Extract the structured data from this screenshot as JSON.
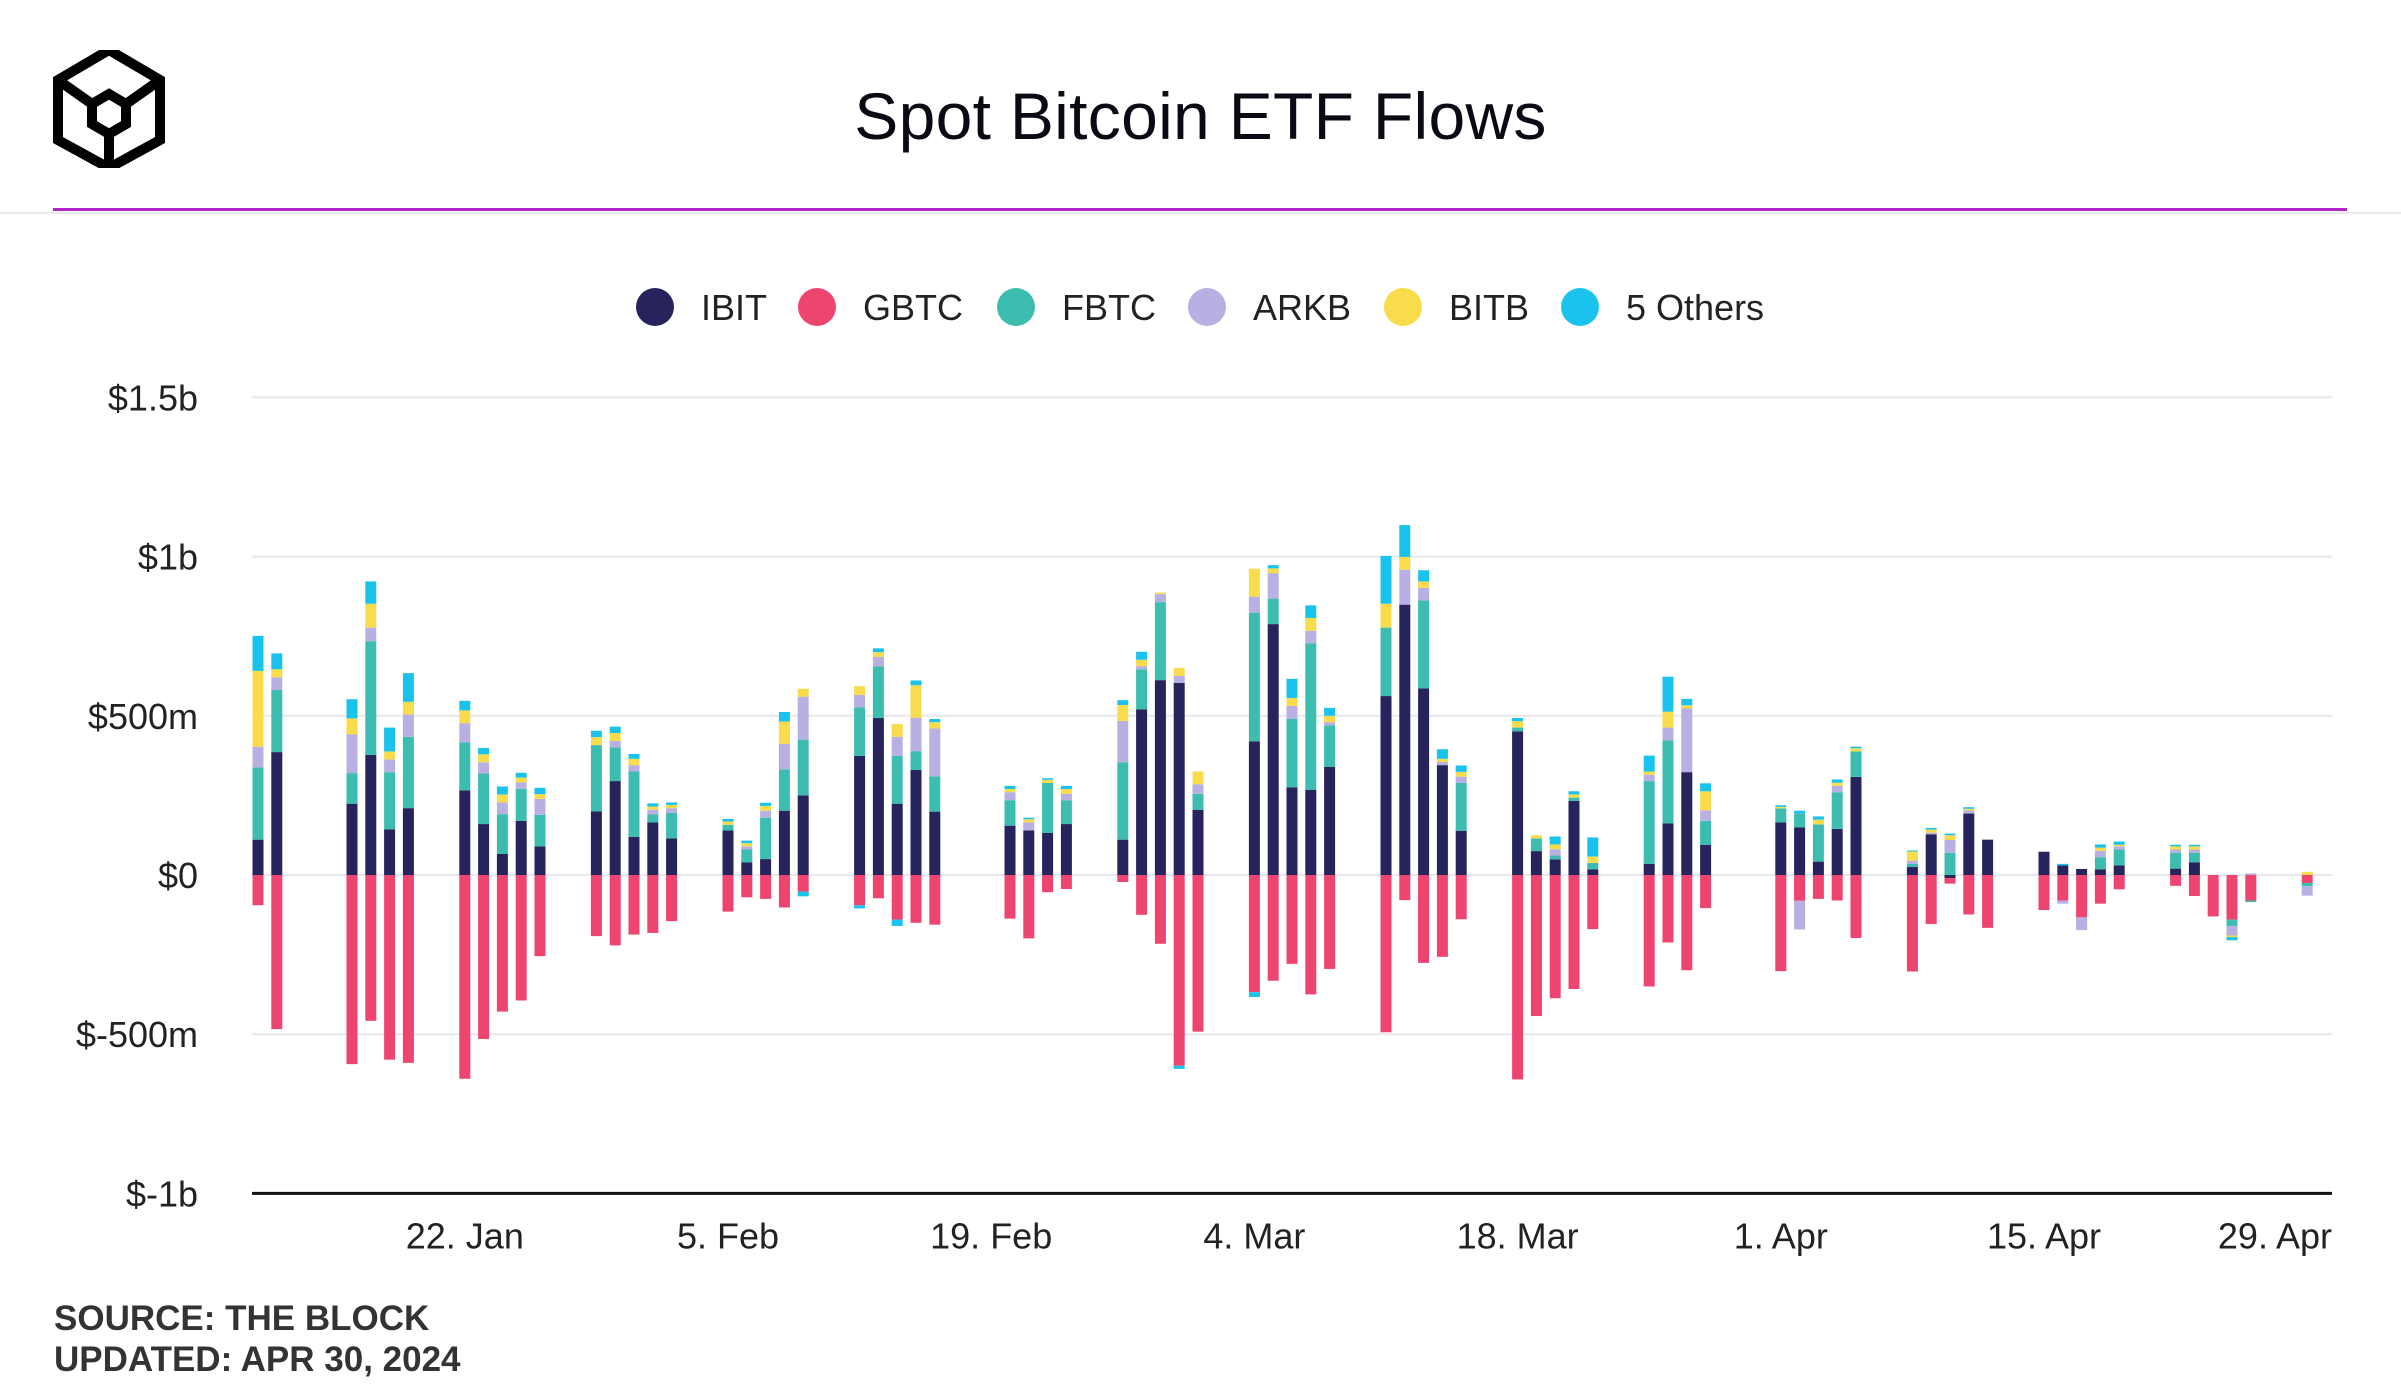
{
  "title": "Spot Bitcoin ETF Flows",
  "footer": {
    "source": "SOURCE: THE BLOCK",
    "updated": "UPDATED: APR 30, 2024"
  },
  "colors": {
    "accent_line": "#b026c4",
    "axis": "#111111",
    "grid": "#e8e8ec",
    "text": "#222222"
  },
  "logo_icon": "the-block-cube-logo-icon",
  "chart_data": {
    "type": "bar",
    "stacked": true,
    "ylim": [
      -1000,
      1500
    ],
    "y_unit": "millions USD",
    "y_ticks": [
      {
        "value": -1000,
        "label": "$-1b"
      },
      {
        "value": -500,
        "label": "$-500m"
      },
      {
        "value": 0,
        "label": "$0"
      },
      {
        "value": 500,
        "label": "$500m"
      },
      {
        "value": 1000,
        "label": "$1b"
      },
      {
        "value": 1500,
        "label": "$1.5b"
      }
    ],
    "grid": true,
    "legend_position": "top-center",
    "x_ticks": [
      {
        "date": "2024-01-22",
        "label": "22. Jan"
      },
      {
        "date": "2024-02-05",
        "label": "5. Feb"
      },
      {
        "date": "2024-02-19",
        "label": "19. Feb"
      },
      {
        "date": "2024-03-04",
        "label": "4. Mar"
      },
      {
        "date": "2024-03-18",
        "label": "18. Mar"
      },
      {
        "date": "2024-04-01",
        "label": "1. Apr"
      },
      {
        "date": "2024-04-15",
        "label": "15. Apr"
      },
      {
        "date": "2024-04-29",
        "label": "29. Apr"
      }
    ],
    "series": [
      {
        "name": "IBIT",
        "color": "#27235c"
      },
      {
        "name": "GBTC",
        "color": "#ee4470"
      },
      {
        "name": "FBTC",
        "color": "#3dbdb0"
      },
      {
        "name": "ARKB",
        "color": "#b8b0e2"
      },
      {
        "name": "BITB",
        "color": "#f8dc4c"
      },
      {
        "name": "5 Others",
        "color": "#19c3ee"
      }
    ],
    "days": [
      {
        "date": "2024-01-11",
        "IBIT": 111,
        "GBTC": -95,
        "FBTC": 227,
        "ARKB": 65,
        "BITB": 238,
        "5 Others": 110
      },
      {
        "date": "2024-01-12",
        "IBIT": 386,
        "GBTC": -484,
        "FBTC": 195,
        "ARKB": 40,
        "BITB": 25,
        "5 Others": 50
      },
      {
        "date": "2024-01-16",
        "IBIT": 224,
        "GBTC": -594,
        "FBTC": 96,
        "ARKB": 122,
        "BITB": 50,
        "5 Others": 60
      },
      {
        "date": "2024-01-17",
        "IBIT": 377,
        "GBTC": -458,
        "FBTC": 357,
        "ARKB": 43,
        "BITB": 75,
        "5 Others": 70
      },
      {
        "date": "2024-01-18",
        "IBIT": 143,
        "GBTC": -580,
        "FBTC": 180,
        "ARKB": 40,
        "BITB": 25,
        "5 Others": 75
      },
      {
        "date": "2024-01-19",
        "IBIT": 210,
        "GBTC": -590,
        "FBTC": 224,
        "ARKB": 70,
        "BITB": 40,
        "5 Others": 90
      },
      {
        "date": "2024-01-22",
        "IBIT": 266,
        "GBTC": -640,
        "FBTC": 151,
        "ARKB": 60,
        "BITB": 40,
        "5 Others": 30
      },
      {
        "date": "2024-01-23",
        "IBIT": 160,
        "GBTC": -515,
        "FBTC": 159,
        "ARKB": 35,
        "BITB": 25,
        "5 Others": 20
      },
      {
        "date": "2024-01-24",
        "IBIT": 66,
        "GBTC": -429,
        "FBTC": 125,
        "ARKB": 37,
        "BITB": 25,
        "5 Others": 25
      },
      {
        "date": "2024-01-25",
        "IBIT": 170,
        "GBTC": -394,
        "FBTC": 101,
        "ARKB": 20,
        "BITB": 15,
        "5 Others": 15
      },
      {
        "date": "2024-01-26",
        "IBIT": 90,
        "GBTC": -255,
        "FBTC": 99,
        "ARKB": 50,
        "BITB": 15,
        "5 Others": 20
      },
      {
        "date": "2024-01-29",
        "IBIT": 200,
        "GBTC": -192,
        "FBTC": 208,
        "ARKB": 0,
        "BITB": 25,
        "5 Others": 20
      },
      {
        "date": "2024-01-30",
        "IBIT": 295,
        "GBTC": -221,
        "FBTC": 106,
        "ARKB": 20,
        "BITB": 25,
        "5 Others": 20
      },
      {
        "date": "2024-01-31",
        "IBIT": 120,
        "GBTC": -187,
        "FBTC": 205,
        "ARKB": 20,
        "BITB": 20,
        "5 Others": 15
      },
      {
        "date": "2024-02-01",
        "IBIT": 165,
        "GBTC": -182,
        "FBTC": 25,
        "ARKB": 15,
        "BITB": 10,
        "5 Others": 10
      },
      {
        "date": "2024-02-02",
        "IBIT": 115,
        "GBTC": -145,
        "FBTC": 80,
        "ARKB": 15,
        "BITB": 10,
        "5 Others": 8
      },
      {
        "date": "2024-02-05",
        "IBIT": 140,
        "GBTC": -115,
        "FBTC": 18,
        "ARKB": 0,
        "BITB": 10,
        "5 Others": 8
      },
      {
        "date": "2024-02-06",
        "IBIT": 40,
        "GBTC": -70,
        "FBTC": 40,
        "ARKB": 10,
        "BITB": 10,
        "5 Others": 8
      },
      {
        "date": "2024-02-07",
        "IBIT": 50,
        "GBTC": -75,
        "FBTC": 130,
        "ARKB": 22,
        "BITB": 15,
        "5 Others": 10
      },
      {
        "date": "2024-02-08",
        "IBIT": 202,
        "GBTC": -102,
        "FBTC": 130,
        "ARKB": 80,
        "BITB": 70,
        "5 Others": 30
      },
      {
        "date": "2024-02-09",
        "IBIT": 250,
        "GBTC": -52,
        "FBTC": 175,
        "ARKB": 135,
        "BITB": 25,
        "5 Others": -15
      },
      {
        "date": "2024-02-12",
        "IBIT": 374,
        "GBTC": -95,
        "FBTC": 152,
        "ARKB": 40,
        "BITB": 27,
        "5 Others": -10
      },
      {
        "date": "2024-02-13",
        "IBIT": 493,
        "GBTC": -73,
        "FBTC": 162,
        "ARKB": 30,
        "BITB": 15,
        "5 Others": 12
      },
      {
        "date": "2024-02-14",
        "IBIT": 224,
        "GBTC": -140,
        "FBTC": 150,
        "ARKB": 60,
        "BITB": 40,
        "5 Others": -20
      },
      {
        "date": "2024-02-15",
        "IBIT": 330,
        "GBTC": -150,
        "FBTC": 59,
        "ARKB": 105,
        "BITB": 102,
        "5 Others": 15
      },
      {
        "date": "2024-02-16",
        "IBIT": 199,
        "GBTC": -156,
        "FBTC": 111,
        "ARKB": 150,
        "BITB": 20,
        "5 Others": 10
      },
      {
        "date": "2024-02-20",
        "IBIT": 155,
        "GBTC": -137,
        "FBTC": 80,
        "ARKB": 25,
        "BITB": 10,
        "5 Others": 10
      },
      {
        "date": "2024-02-21",
        "IBIT": 140,
        "GBTC": -199,
        "FBTC": 0,
        "ARKB": 25,
        "BITB": 10,
        "5 Others": 5
      },
      {
        "date": "2024-02-22",
        "IBIT": 132,
        "GBTC": -54,
        "FBTC": 157,
        "ARKB": 0,
        "BITB": 10,
        "5 Others": 5
      },
      {
        "date": "2024-02-23",
        "IBIT": 160,
        "GBTC": -44,
        "FBTC": 75,
        "ARKB": 20,
        "BITB": 15,
        "5 Others": 10
      },
      {
        "date": "2024-02-26",
        "IBIT": 111,
        "GBTC": -22,
        "FBTC": 243,
        "ARKB": 130,
        "BITB": 50,
        "5 Others": 15
      },
      {
        "date": "2024-02-27",
        "IBIT": 520,
        "GBTC": -125,
        "FBTC": 126,
        "ARKB": 10,
        "BITB": 20,
        "5 Others": 25
      },
      {
        "date": "2024-02-28",
        "IBIT": 612,
        "GBTC": -216,
        "FBTC": 245,
        "ARKB": 25,
        "BITB": 5,
        "5 Others": 0
      },
      {
        "date": "2024-02-29",
        "IBIT": 603,
        "GBTC": -599,
        "FBTC": 0,
        "ARKB": 22,
        "BITB": 25,
        "5 Others": -10
      },
      {
        "date": "2024-03-01",
        "IBIT": 205,
        "GBTC": -492,
        "FBTC": 50,
        "ARKB": 30,
        "BITB": 40,
        "5 Others": 0
      },
      {
        "date": "2024-03-04",
        "IBIT": 420,
        "GBTC": -368,
        "FBTC": 404,
        "ARKB": 50,
        "BITB": 88,
        "5 Others": -15
      },
      {
        "date": "2024-03-05",
        "IBIT": 788,
        "GBTC": -332,
        "FBTC": 80,
        "ARKB": 80,
        "BITB": 15,
        "5 Others": 10
      },
      {
        "date": "2024-03-06",
        "IBIT": 275,
        "GBTC": -279,
        "FBTC": 216,
        "ARKB": 40,
        "BITB": 25,
        "5 Others": 60
      },
      {
        "date": "2024-03-07",
        "IBIT": 267,
        "GBTC": -375,
        "FBTC": 460,
        "ARKB": 40,
        "BITB": 40,
        "5 Others": 40
      },
      {
        "date": "2024-03-08",
        "IBIT": 340,
        "GBTC": -295,
        "FBTC": 130,
        "ARKB": 10,
        "BITB": 20,
        "5 Others": 25
      },
      {
        "date": "2024-03-11",
        "IBIT": 562,
        "GBTC": -494,
        "FBTC": 215,
        "ARKB": 0,
        "BITB": 75,
        "5 Others": 150
      },
      {
        "date": "2024-03-12",
        "IBIT": 849,
        "GBTC": -79,
        "FBTC": 0,
        "ARKB": 110,
        "BITB": 40,
        "5 Others": 100
      },
      {
        "date": "2024-03-13",
        "IBIT": 586,
        "GBTC": -276,
        "FBTC": 276,
        "ARKB": 40,
        "BITB": 20,
        "5 Others": 35
      },
      {
        "date": "2024-03-14",
        "IBIT": 345,
        "GBTC": -257,
        "FBTC": 0,
        "ARKB": 10,
        "BITB": 10,
        "5 Others": 30
      },
      {
        "date": "2024-03-15",
        "IBIT": 139,
        "GBTC": -139,
        "FBTC": 150,
        "ARKB": 20,
        "BITB": 15,
        "5 Others": 20
      },
      {
        "date": "2024-03-18",
        "IBIT": 451,
        "GBTC": -642,
        "FBTC": 12,
        "ARKB": 0,
        "BITB": 20,
        "5 Others": 10
      },
      {
        "date": "2024-03-19",
        "IBIT": 75,
        "GBTC": -443,
        "FBTC": 40,
        "ARKB": 0,
        "BITB": 10,
        "5 Others": 0
      },
      {
        "date": "2024-03-20",
        "IBIT": 49,
        "GBTC": -387,
        "FBTC": 12,
        "ARKB": 20,
        "BITB": 15,
        "5 Others": 25
      },
      {
        "date": "2024-03-21",
        "IBIT": 233,
        "GBTC": -358,
        "FBTC": 10,
        "ARKB": 0,
        "BITB": 10,
        "5 Others": 10
      },
      {
        "date": "2024-03-22",
        "IBIT": 18,
        "GBTC": -170,
        "FBTC": 20,
        "ARKB": 0,
        "BITB": 20,
        "5 Others": 60
      },
      {
        "date": "2024-03-25",
        "IBIT": 35,
        "GBTC": -350,
        "FBTC": 260,
        "ARKB": 20,
        "BITB": 10,
        "5 Others": 50
      },
      {
        "date": "2024-03-26",
        "IBIT": 162,
        "GBTC": -212,
        "FBTC": 261,
        "ARKB": 40,
        "BITB": 50,
        "5 Others": 110
      },
      {
        "date": "2024-03-27",
        "IBIT": 323,
        "GBTC": -299,
        "FBTC": 0,
        "ARKB": 200,
        "BITB": 10,
        "5 Others": 20
      },
      {
        "date": "2024-03-28",
        "IBIT": 95,
        "GBTC": -104,
        "FBTC": 75,
        "ARKB": 33,
        "BITB": 60,
        "5 Others": 25
      },
      {
        "date": "2024-04-01",
        "IBIT": 165,
        "GBTC": -302,
        "FBTC": 44,
        "ARKB": 0,
        "BITB": 5,
        "5 Others": 5
      },
      {
        "date": "2024-04-02",
        "IBIT": 150,
        "GBTC": -81,
        "FBTC": 44,
        "ARKB": -90,
        "BITB": 0,
        "5 Others": 8
      },
      {
        "date": "2024-04-03",
        "IBIT": 42,
        "GBTC": -75,
        "FBTC": 117,
        "ARKB": 0,
        "BITB": 15,
        "5 Others": 10
      },
      {
        "date": "2024-04-04",
        "IBIT": 145,
        "GBTC": -80,
        "FBTC": 115,
        "ARKB": 20,
        "BITB": 10,
        "5 Others": 10
      },
      {
        "date": "2024-04-05",
        "IBIT": 308,
        "GBTC": -198,
        "FBTC": 80,
        "ARKB": 0,
        "BITB": 10,
        "5 Others": 5
      },
      {
        "date": "2024-04-08",
        "IBIT": 25,
        "GBTC": -303,
        "FBTC": 10,
        "ARKB": 10,
        "BITB": 30,
        "5 Others": 2
      },
      {
        "date": "2024-04-09",
        "IBIT": 128,
        "GBTC": -154,
        "FBTC": 0,
        "ARKB": 5,
        "BITB": 10,
        "5 Others": 5
      },
      {
        "date": "2024-04-10",
        "IBIT": -10,
        "GBTC": -17,
        "FBTC": 70,
        "ARKB": 40,
        "BITB": 15,
        "5 Others": 5
      },
      {
        "date": "2024-04-11",
        "IBIT": 193,
        "GBTC": -124,
        "FBTC": 0,
        "ARKB": 10,
        "BITB": 5,
        "5 Others": 5
      },
      {
        "date": "2024-04-12",
        "IBIT": 111,
        "GBTC": -166,
        "FBTC": 0,
        "ARKB": 0,
        "BITB": 0,
        "5 Others": 0
      },
      {
        "date": "2024-04-15",
        "IBIT": 73,
        "GBTC": -110,
        "FBTC": 0,
        "ARKB": 0,
        "BITB": 0,
        "5 Others": 0
      },
      {
        "date": "2024-04-16",
        "IBIT": 30,
        "GBTC": -80,
        "FBTC": 0,
        "ARKB": -10,
        "BITB": 0,
        "5 Others": 5
      },
      {
        "date": "2024-04-17",
        "IBIT": 19,
        "GBTC": -133,
        "FBTC": 0,
        "ARKB": -40,
        "BITB": 0,
        "5 Others": 0
      },
      {
        "date": "2024-04-18",
        "IBIT": 18,
        "GBTC": -90,
        "FBTC": 38,
        "ARKB": 20,
        "BITB": 10,
        "5 Others": 10
      },
      {
        "date": "2024-04-19",
        "IBIT": 30,
        "GBTC": -45,
        "FBTC": 50,
        "ARKB": 10,
        "BITB": 5,
        "5 Others": 10
      },
      {
        "date": "2024-04-22",
        "IBIT": 20,
        "GBTC": -34,
        "FBTC": 50,
        "ARKB": 10,
        "BITB": 10,
        "5 Others": 5
      },
      {
        "date": "2024-04-23",
        "IBIT": 40,
        "GBTC": -66,
        "FBTC": 30,
        "ARKB": 10,
        "BITB": 10,
        "5 Others": 5
      },
      {
        "date": "2024-04-24",
        "IBIT": 0,
        "GBTC": -130,
        "FBTC": 0,
        "ARKB": 0,
        "BITB": 0,
        "5 Others": 0
      },
      {
        "date": "2024-04-25",
        "IBIT": 0,
        "GBTC": -140,
        "FBTC": -20,
        "ARKB": -30,
        "BITB": -5,
        "5 Others": -10
      },
      {
        "date": "2024-04-26",
        "IBIT": 0,
        "GBTC": -80,
        "FBTC": -5,
        "ARKB": 5,
        "BITB": 0,
        "5 Others": 0
      },
      {
        "date": "2024-04-29",
        "IBIT": 0,
        "GBTC": -25,
        "FBTC": -10,
        "ARKB": -30,
        "BITB": 10,
        "5 Others": 0
      }
    ]
  }
}
